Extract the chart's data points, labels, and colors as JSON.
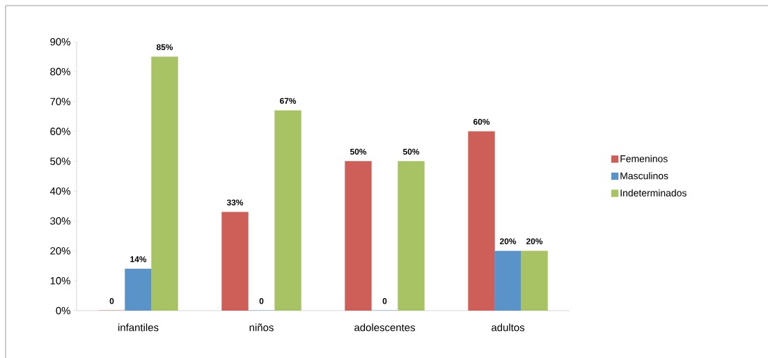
{
  "chart_data": {
    "type": "bar",
    "categories": [
      "infantiles",
      "niños",
      "adolescentes",
      "adultos"
    ],
    "series": [
      {
        "name": "Femeninos",
        "color": "#cd5f58",
        "values": [
          0,
          33,
          50,
          60
        ],
        "value_labels": [
          "0",
          "33%",
          "50%",
          "60%"
        ]
      },
      {
        "name": "Masculinos",
        "color": "#5a93c8",
        "values": [
          14,
          0,
          0,
          20
        ],
        "value_labels": [
          "14%",
          "0",
          "0",
          "20%"
        ]
      },
      {
        "name": "Indeterminados",
        "color": "#a8c364",
        "values": [
          85,
          67,
          50,
          20
        ],
        "value_labels": [
          "85%",
          "67%",
          "50%",
          "20%"
        ]
      }
    ],
    "ylim": [
      0,
      90
    ],
    "yticks": [
      {
        "value": 0,
        "label": "0%"
      },
      {
        "value": 10,
        "label": "10%"
      },
      {
        "value": 20,
        "label": "20%"
      },
      {
        "value": 30,
        "label": "30%"
      },
      {
        "value": 40,
        "label": "40%"
      },
      {
        "value": 50,
        "label": "50%"
      },
      {
        "value": 60,
        "label": "60%"
      },
      {
        "value": 70,
        "label": "70%"
      },
      {
        "value": 80,
        "label": "80%"
      },
      {
        "value": 90,
        "label": "90%"
      }
    ],
    "legend": "right",
    "grid": false
  }
}
